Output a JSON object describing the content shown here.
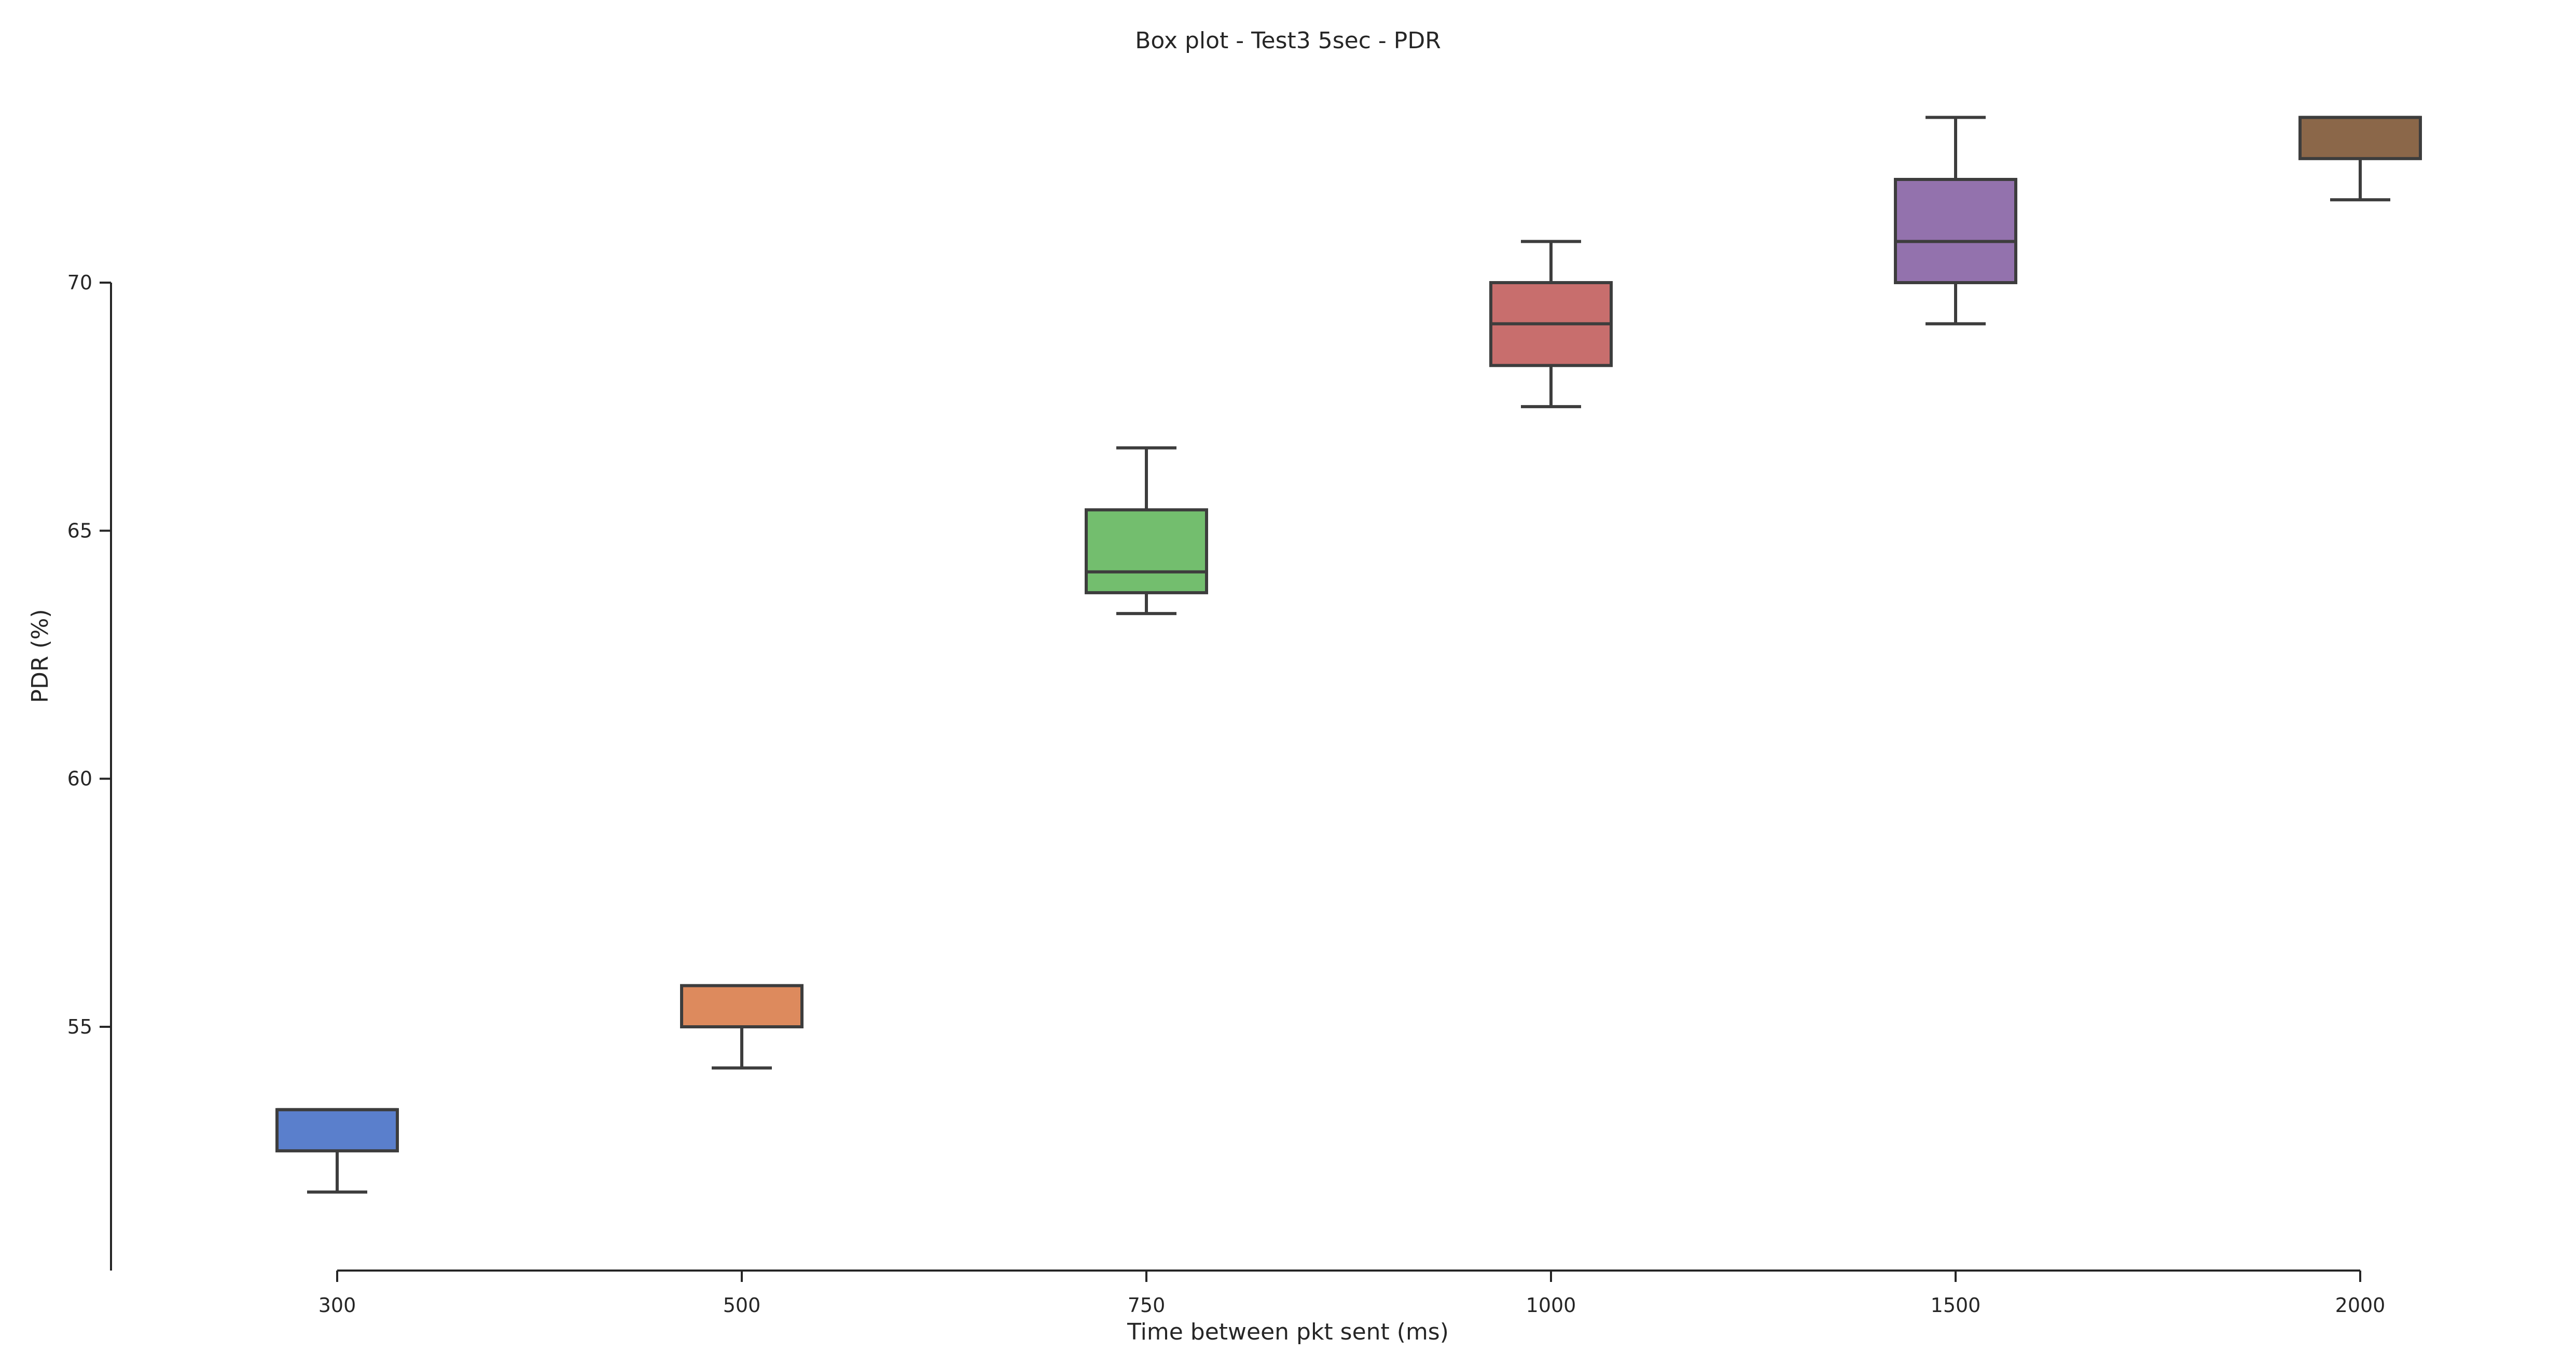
{
  "chart_data": {
    "type": "box",
    "title": "Box plot - Test3 5sec - PDR",
    "xlabel": "Time between pkt sent (ms)",
    "ylabel": "PDR (%)",
    "categories": [
      "300",
      "500",
      "750",
      "1000",
      "1500",
      "2000"
    ],
    "yticks": [
      55,
      60,
      65,
      70
    ],
    "ytick_labels": [
      "55",
      "60",
      "65",
      "70"
    ],
    "ylim": [
      50.2,
      74.0
    ],
    "grid": false,
    "boxes": [
      {
        "category": "300",
        "whisker_low": 51.67,
        "q1": 52.5,
        "median": 53.33,
        "q3": 53.33,
        "whisker_high": 53.33,
        "color": "#5a7fcc"
      },
      {
        "category": "500",
        "whisker_low": 54.17,
        "q1": 55.0,
        "median": 55.0,
        "q3": 55.83,
        "whisker_high": 55.83,
        "color": "#dd8a5d"
      },
      {
        "category": "750",
        "whisker_low": 63.33,
        "q1": 63.75,
        "median": 64.17,
        "q3": 65.42,
        "whisker_high": 66.67,
        "color": "#73be6e"
      },
      {
        "category": "1000",
        "whisker_low": 67.5,
        "q1": 68.33,
        "median": 69.17,
        "q3": 70.0,
        "whisker_high": 70.83,
        "color": "#c86e6d"
      },
      {
        "category": "1500",
        "whisker_low": 69.17,
        "q1": 70.0,
        "median": 70.83,
        "q3": 72.08,
        "whisker_high": 73.33,
        "color": "#9372ad"
      },
      {
        "category": "2000",
        "whisker_low": 71.67,
        "q1": 72.5,
        "median": 73.33,
        "q3": 73.33,
        "whisker_high": 73.33,
        "color": "#8b6749"
      }
    ]
  }
}
